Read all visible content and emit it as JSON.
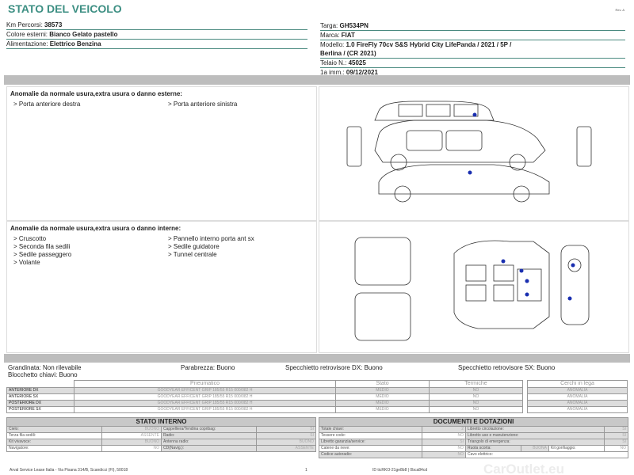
{
  "header": {
    "title": "STATO DEL VEICOLO",
    "rev": "Rev. A"
  },
  "vehicle_left": [
    {
      "label": "Km Percorsi: ",
      "value": "38573"
    },
    {
      "label": "Colore esterni: ",
      "value": "Bianco Gelato pastello"
    },
    {
      "label": "Alimentazione: ",
      "value": "Elettrico Benzina"
    }
  ],
  "vehicle_right": {
    "targa": {
      "label": "Targa: ",
      "value": "GH534PN"
    },
    "marca": {
      "label": "Marca: ",
      "value": "FIAT"
    },
    "modello": {
      "label": "Modello: ",
      "value": "1.0 FireFly 70cv S&S Hybrid City LifePanda / 2021 / 5P /",
      "value2": "Berlina / (CR 2021)"
    },
    "telaio": {
      "label": "Telaio N.: ",
      "value": "45025"
    },
    "imm": {
      "label": "1a imm.: ",
      "value": "09/12/2021"
    }
  },
  "exterior": {
    "heading": "Anomalie da normale usura,extra usura o danno esterne:",
    "col1": [
      "> Porta anteriore destra"
    ],
    "col2": [
      "> Porta anteriore sinistra"
    ]
  },
  "interior": {
    "heading": "Anomalie da normale usura,extra usura o danno interne:",
    "col1": [
      "> Cruscotto",
      "> Seconda fila sedili",
      "> Sedile passeggero",
      "> Volante"
    ],
    "col2": [
      "> Pannello interno porta ant sx",
      "> Sedile guidatore",
      "> Tunnel centrale"
    ]
  },
  "checks": {
    "grandinata": "Grandinata: Non rilevabile",
    "blocchetto": "Blocchetto chiavi: Buono",
    "parabrezza": "Parabrezza: Buono",
    "spec_dx": "Specchietto retrovisore DX: Buono",
    "spec_sx": "Specchietto retrovisore SX: Buono"
  },
  "tires": {
    "headers": [
      "Pneumatico",
      "Stato",
      "Termiche",
      "Cerchi in lega"
    ],
    "rows": [
      {
        "pos": "ANTERIORE DX",
        "tire": "GOODYEAR EFFICENT GRIP  185/55 R15 000/082 H",
        "stato": "MEDIO",
        "termiche": "NO",
        "cerchi": "ANOMALIA"
      },
      {
        "pos": "ANTERIORE SX",
        "tire": "GOODYEAR EFFICENT GRIP  185/55 R15 000/082 H",
        "stato": "MEDIO",
        "termiche": "NO",
        "cerchi": "ANOMALIA"
      },
      {
        "pos": "POSTERIORE DX",
        "tire": "GOODYEAR EFFICENT GRIP  185/55 R15 000/082 H",
        "stato": "MEDIO",
        "termiche": "NO",
        "cerchi": "ANOMALIA"
      },
      {
        "pos": "POSTERIORE SX",
        "tire": "GOODYEAR EFFICENT GRIP  185/55 R15 000/082 H",
        "stato": "MEDIO",
        "termiche": "NO",
        "cerchi": "ANOMALIA"
      }
    ]
  },
  "stato_interno": {
    "title": "STATO INTERNO",
    "rows": [
      [
        "Cielo:",
        "BUONO",
        "Cappelliera/Tendina copribag:",
        "SI"
      ],
      [
        "Terza fila sedili:",
        "ASSENTE",
        "Radio:",
        "SI"
      ],
      [
        "Kit vivavoce:",
        "BUONO",
        "Antenna radio:",
        "BUONO"
      ],
      [
        "Navigatore:",
        "NO",
        "CD(Navig.):",
        "ASSENTE"
      ]
    ]
  },
  "documenti": {
    "title": "DOCUMENTI E DOTAZIONI",
    "rows": [
      [
        "Totale chiavi:",
        "2",
        "Libretto circolazione:",
        "SI"
      ],
      [
        "Tessere code:",
        "NO",
        "Libretto uso e manutenzione:",
        "SI"
      ],
      [
        "Libretto garanzia/service:",
        "SI",
        "Triangolo di emergenza:",
        "SI"
      ]
    ],
    "ruota": [
      "Catene da neve:",
      "NO",
      "Ruota scorta:",
      "BUONA",
      "Kit gonfiaggio:",
      "NO"
    ],
    "last": [
      "Codice autoradio:",
      "NO",
      "Cavo elettrico:",
      ""
    ]
  },
  "footer": {
    "address": "Arval Service Lease Italia - Via Pisana 314/B, Scandicci (FI), 50018",
    "page": "1",
    "id": "ID ticRKO-21ge8b8 | 0bca84cd"
  },
  "watermark": "CarOutlet.eu",
  "colors": {
    "title": "#3d8f83",
    "damage_dot": "#1a2fb0"
  }
}
